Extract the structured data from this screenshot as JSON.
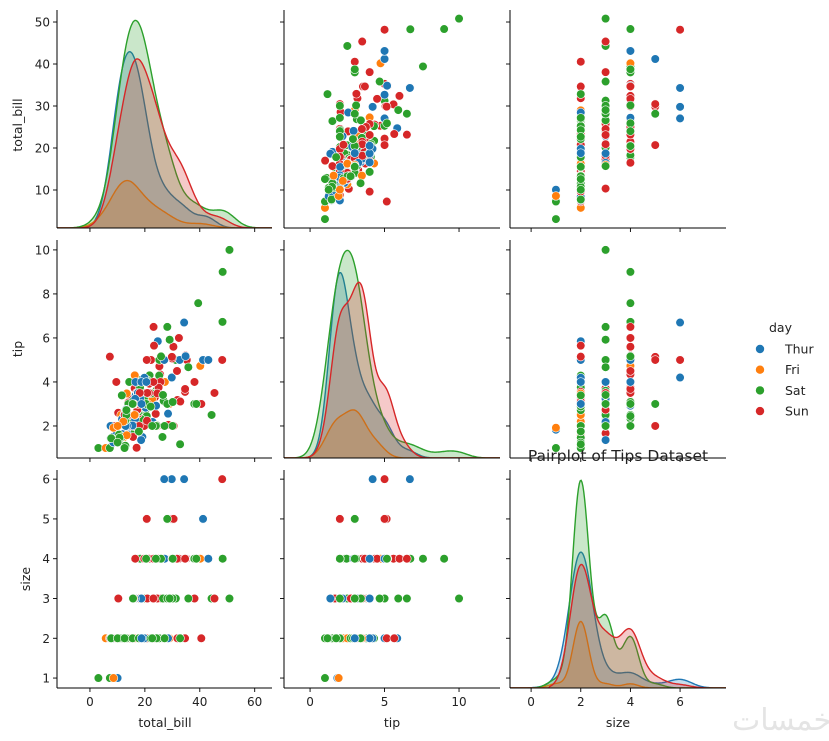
{
  "chart_data": {
    "type": "scatter",
    "title": "Pairplot of Tips Dataset",
    "variables": [
      "total_bill",
      "tip",
      "size"
    ],
    "diagonal_type": "kde",
    "hue": "day",
    "legend": {
      "title": "day",
      "placement": "right",
      "entries": [
        "Thur",
        "Fri",
        "Sat",
        "Sun"
      ]
    },
    "colors": {
      "Thur": "#1f77b4",
      "Fri": "#ff7f0e",
      "Sat": "#2ca02c",
      "Sun": "#d62728"
    },
    "x_ticks": {
      "total_bill": [
        0,
        20,
        40,
        60
      ],
      "tip": [
        0,
        5,
        10
      ],
      "size": [
        0,
        2,
        4,
        6
      ]
    },
    "y_ticks": {
      "total_bill": [
        10,
        20,
        30,
        40,
        50
      ],
      "tip": [
        2,
        4,
        6,
        8,
        10
      ],
      "size": [
        1,
        2,
        3,
        4,
        5,
        6
      ]
    },
    "x_limits": {
      "total_bill": [
        -12,
        66.3
      ],
      "tip": [
        -1.75,
        12.75
      ],
      "size": [
        -0.85,
        7.85
      ]
    },
    "y_limits": {
      "total_bill": [
        0.95,
        52.86
      ],
      "tip": [
        0.545,
        10.45
      ],
      "size": [
        0.75,
        6.23
      ]
    },
    "columns": [
      "total_bill",
      "tip",
      "size",
      "day"
    ],
    "rows": [
      [
        16.99,
        1.01,
        2,
        "Sun"
      ],
      [
        10.34,
        1.66,
        3,
        "Sun"
      ],
      [
        21.01,
        3.5,
        3,
        "Sun"
      ],
      [
        23.68,
        3.31,
        2,
        "Sun"
      ],
      [
        24.59,
        3.61,
        4,
        "Sun"
      ],
      [
        25.29,
        4.71,
        4,
        "Sun"
      ],
      [
        8.77,
        2.0,
        2,
        "Sun"
      ],
      [
        26.88,
        3.12,
        4,
        "Sun"
      ],
      [
        15.04,
        1.96,
        2,
        "Sun"
      ],
      [
        14.78,
        3.23,
        2,
        "Sun"
      ],
      [
        10.27,
        1.71,
        2,
        "Sun"
      ],
      [
        35.26,
        5.0,
        4,
        "Sun"
      ],
      [
        15.42,
        1.57,
        2,
        "Sun"
      ],
      [
        18.43,
        3.0,
        4,
        "Sun"
      ],
      [
        14.83,
        3.02,
        2,
        "Sun"
      ],
      [
        21.58,
        3.92,
        2,
        "Sun"
      ],
      [
        10.33,
        1.67,
        3,
        "Sun"
      ],
      [
        16.29,
        3.71,
        3,
        "Sun"
      ],
      [
        16.97,
        3.5,
        3,
        "Sun"
      ],
      [
        20.65,
        3.35,
        3,
        "Sat"
      ],
      [
        17.92,
        4.08,
        2,
        "Sat"
      ],
      [
        20.29,
        2.75,
        2,
        "Sat"
      ],
      [
        15.77,
        2.23,
        2,
        "Sat"
      ],
      [
        39.42,
        7.58,
        4,
        "Sat"
      ],
      [
        19.82,
        3.18,
        2,
        "Sat"
      ],
      [
        17.81,
        2.34,
        4,
        "Sat"
      ],
      [
        13.37,
        2.0,
        2,
        "Sat"
      ],
      [
        12.69,
        2.0,
        2,
        "Sat"
      ],
      [
        21.7,
        4.3,
        2,
        "Sat"
      ],
      [
        19.65,
        3.0,
        2,
        "Sat"
      ],
      [
        9.55,
        1.45,
        2,
        "Sat"
      ],
      [
        18.35,
        2.5,
        4,
        "Sat"
      ],
      [
        15.06,
        3.0,
        2,
        "Sat"
      ],
      [
        20.69,
        2.45,
        4,
        "Sat"
      ],
      [
        17.78,
        3.27,
        2,
        "Sat"
      ],
      [
        24.06,
        3.6,
        3,
        "Sat"
      ],
      [
        16.31,
        2.0,
        3,
        "Sat"
      ],
      [
        16.93,
        3.07,
        3,
        "Sat"
      ],
      [
        18.69,
        2.31,
        3,
        "Sat"
      ],
      [
        31.27,
        5.0,
        3,
        "Sat"
      ],
      [
        16.04,
        2.24,
        3,
        "Sat"
      ],
      [
        17.46,
        2.54,
        2,
        "Sun"
      ],
      [
        13.94,
        3.06,
        2,
        "Sun"
      ],
      [
        9.68,
        1.32,
        2,
        "Sun"
      ],
      [
        30.4,
        5.6,
        4,
        "Sun"
      ],
      [
        18.29,
        3.0,
        2,
        "Sun"
      ],
      [
        22.23,
        5.0,
        2,
        "Sun"
      ],
      [
        32.4,
        6.0,
        4,
        "Sun"
      ],
      [
        28.55,
        2.05,
        3,
        "Sun"
      ],
      [
        18.04,
        3.0,
        2,
        "Sun"
      ],
      [
        12.54,
        2.5,
        2,
        "Sun"
      ],
      [
        10.29,
        2.6,
        2,
        "Sun"
      ],
      [
        34.81,
        5.2,
        4,
        "Sun"
      ],
      [
        9.94,
        1.56,
        2,
        "Sun"
      ],
      [
        25.56,
        4.34,
        4,
        "Sun"
      ],
      [
        19.49,
        3.51,
        2,
        "Sun"
      ],
      [
        38.01,
        3.0,
        4,
        "Sat"
      ],
      [
        26.41,
        1.5,
        2,
        "Sat"
      ],
      [
        11.24,
        1.76,
        2,
        "Sat"
      ],
      [
        48.27,
        6.73,
        4,
        "Sat"
      ],
      [
        20.29,
        3.21,
        2,
        "Sat"
      ],
      [
        13.81,
        2.0,
        2,
        "Sat"
      ],
      [
        11.02,
        1.98,
        2,
        "Sat"
      ],
      [
        18.29,
        3.76,
        4,
        "Sat"
      ],
      [
        17.59,
        2.64,
        3,
        "Sat"
      ],
      [
        20.08,
        3.15,
        3,
        "Sat"
      ],
      [
        16.45,
        2.47,
        2,
        "Sat"
      ],
      [
        3.07,
        1.0,
        1,
        "Sat"
      ],
      [
        20.23,
        2.01,
        2,
        "Sat"
      ],
      [
        15.01,
        2.09,
        2,
        "Sat"
      ],
      [
        12.02,
        1.97,
        2,
        "Sat"
      ],
      [
        17.07,
        3.0,
        3,
        "Sat"
      ],
      [
        26.86,
        3.14,
        2,
        "Sat"
      ],
      [
        25.28,
        5.0,
        2,
        "Sat"
      ],
      [
        14.73,
        2.2,
        2,
        "Sat"
      ],
      [
        10.51,
        1.25,
        2,
        "Sat"
      ],
      [
        17.92,
        3.08,
        2,
        "Sat"
      ],
      [
        27.2,
        4.0,
        4,
        "Thur"
      ],
      [
        22.76,
        3.0,
        2,
        "Thur"
      ],
      [
        17.29,
        2.71,
        2,
        "Thur"
      ],
      [
        19.44,
        3.0,
        2,
        "Thur"
      ],
      [
        16.66,
        3.4,
        2,
        "Thur"
      ],
      [
        10.07,
        1.83,
        1,
        "Thur"
      ],
      [
        32.68,
        5.0,
        2,
        "Thur"
      ],
      [
        15.98,
        2.03,
        2,
        "Thur"
      ],
      [
        34.83,
        5.17,
        4,
        "Thur"
      ],
      [
        13.03,
        2.0,
        2,
        "Thur"
      ],
      [
        18.28,
        4.0,
        2,
        "Thur"
      ],
      [
        24.71,
        5.85,
        2,
        "Thur"
      ],
      [
        21.16,
        3.0,
        2,
        "Thur"
      ],
      [
        28.97,
        3.0,
        2,
        "Fri"
      ],
      [
        22.49,
        3.5,
        2,
        "Fri"
      ],
      [
        5.75,
        1.0,
        2,
        "Fri"
      ],
      [
        16.32,
        4.3,
        2,
        "Fri"
      ],
      [
        22.75,
        3.25,
        2,
        "Fri"
      ],
      [
        40.17,
        4.73,
        4,
        "Fri"
      ],
      [
        27.28,
        4.0,
        2,
        "Fri"
      ],
      [
        12.03,
        1.5,
        2,
        "Fri"
      ],
      [
        21.01,
        3.0,
        2,
        "Fri"
      ],
      [
        12.46,
        1.5,
        2,
        "Fri"
      ],
      [
        11.35,
        2.5,
        2,
        "Fri"
      ],
      [
        15.38,
        3.0,
        2,
        "Fri"
      ],
      [
        44.3,
        2.5,
        3,
        "Sat"
      ],
      [
        22.42,
        3.48,
        2,
        "Sat"
      ],
      [
        20.92,
        4.08,
        2,
        "Sat"
      ],
      [
        15.36,
        1.64,
        2,
        "Sat"
      ],
      [
        20.49,
        4.06,
        2,
        "Sat"
      ],
      [
        25.21,
        4.29,
        2,
        "Sat"
      ],
      [
        18.24,
        3.76,
        2,
        "Sat"
      ],
      [
        14.31,
        4.0,
        2,
        "Sat"
      ],
      [
        14.0,
        3.0,
        2,
        "Sat"
      ],
      [
        7.25,
        1.0,
        1,
        "Sat"
      ],
      [
        38.07,
        4.0,
        3,
        "Sun"
      ],
      [
        23.95,
        2.55,
        2,
        "Sun"
      ],
      [
        25.71,
        4.0,
        3,
        "Sun"
      ],
      [
        17.31,
        3.5,
        2,
        "Sun"
      ],
      [
        29.93,
        5.07,
        4,
        "Sun"
      ],
      [
        10.65,
        1.5,
        2,
        "Thur"
      ],
      [
        12.43,
        1.8,
        2,
        "Thur"
      ],
      [
        24.08,
        2.92,
        4,
        "Thur"
      ],
      [
        11.69,
        2.31,
        2,
        "Thur"
      ],
      [
        13.42,
        1.68,
        2,
        "Thur"
      ],
      [
        14.26,
        2.5,
        2,
        "Thur"
      ],
      [
        15.95,
        2.0,
        2,
        "Thur"
      ],
      [
        12.48,
        2.52,
        2,
        "Thur"
      ],
      [
        29.8,
        4.2,
        6,
        "Thur"
      ],
      [
        8.52,
        1.48,
        2,
        "Thur"
      ],
      [
        14.52,
        2.0,
        2,
        "Thur"
      ],
      [
        11.38,
        2.0,
        2,
        "Thur"
      ],
      [
        22.82,
        2.18,
        3,
        "Thur"
      ],
      [
        19.08,
        1.5,
        2,
        "Thur"
      ],
      [
        20.27,
        2.83,
        2,
        "Thur"
      ],
      [
        11.17,
        1.5,
        2,
        "Thur"
      ],
      [
        12.26,
        2.0,
        2,
        "Thur"
      ],
      [
        18.26,
        3.25,
        2,
        "Thur"
      ],
      [
        8.51,
        1.25,
        2,
        "Thur"
      ],
      [
        10.33,
        2.0,
        2,
        "Thur"
      ],
      [
        14.15,
        2.0,
        2,
        "Thur"
      ],
      [
        16.0,
        2.0,
        2,
        "Thur"
      ],
      [
        13.16,
        2.75,
        2,
        "Thur"
      ],
      [
        17.47,
        3.5,
        2,
        "Thur"
      ],
      [
        34.3,
        6.7,
        6,
        "Thur"
      ],
      [
        41.19,
        5.0,
        5,
        "Thur"
      ],
      [
        27.05,
        5.0,
        6,
        "Thur"
      ],
      [
        16.43,
        2.3,
        2,
        "Thur"
      ],
      [
        8.35,
        1.5,
        2,
        "Thur"
      ],
      [
        18.64,
        1.36,
        3,
        "Thur"
      ],
      [
        11.87,
        1.63,
        2,
        "Thur"
      ],
      [
        9.78,
        1.73,
        2,
        "Thur"
      ],
      [
        7.51,
        2.0,
        2,
        "Thur"
      ],
      [
        14.07,
        2.5,
        2,
        "Sun"
      ],
      [
        13.13,
        2.0,
        2,
        "Sun"
      ],
      [
        17.26,
        2.74,
        3,
        "Sun"
      ],
      [
        24.55,
        2.0,
        4,
        "Sun"
      ],
      [
        19.77,
        2.0,
        4,
        "Sun"
      ],
      [
        29.85,
        5.14,
        5,
        "Sun"
      ],
      [
        48.17,
        5.0,
        6,
        "Sun"
      ],
      [
        25.0,
        3.75,
        4,
        "Sun"
      ],
      [
        13.39,
        2.61,
        2,
        "Sun"
      ],
      [
        16.49,
        2.0,
        4,
        "Sun"
      ],
      [
        21.5,
        3.5,
        4,
        "Sun"
      ],
      [
        12.66,
        2.5,
        2,
        "Sun"
      ],
      [
        16.21,
        2.0,
        3,
        "Sun"
      ],
      [
        13.81,
        2.0,
        2,
        "Sun"
      ],
      [
        17.51,
        3.0,
        2,
        "Sun"
      ],
      [
        24.52,
        3.48,
        3,
        "Sun"
      ],
      [
        20.76,
        2.24,
        2,
        "Sun"
      ],
      [
        31.71,
        4.5,
        4,
        "Sun"
      ],
      [
        10.59,
        1.61,
        2,
        "Sat"
      ],
      [
        10.63,
        2.0,
        2,
        "Sat"
      ],
      [
        50.81,
        10.0,
        3,
        "Sat"
      ],
      [
        15.81,
        3.16,
        2,
        "Sat"
      ],
      [
        7.25,
        5.15,
        2,
        "Sun"
      ],
      [
        31.85,
        3.18,
        2,
        "Sun"
      ],
      [
        16.82,
        4.0,
        2,
        "Sun"
      ],
      [
        32.9,
        3.11,
        2,
        "Sun"
      ],
      [
        17.89,
        2.0,
        2,
        "Sun"
      ],
      [
        14.48,
        2.0,
        2,
        "Sun"
      ],
      [
        9.6,
        4.0,
        2,
        "Sun"
      ],
      [
        34.63,
        3.55,
        2,
        "Sun"
      ],
      [
        34.65,
        3.68,
        4,
        "Sun"
      ],
      [
        23.33,
        5.65,
        2,
        "Sun"
      ],
      [
        45.35,
        3.5,
        3,
        "Sun"
      ],
      [
        23.17,
        6.5,
        4,
        "Sun"
      ],
      [
        40.55,
        3.0,
        2,
        "Sun"
      ],
      [
        20.69,
        5.0,
        5,
        "Sun"
      ],
      [
        20.9,
        3.5,
        3,
        "Sun"
      ],
      [
        30.46,
        2.0,
        5,
        "Sun"
      ],
      [
        18.15,
        3.5,
        3,
        "Sun"
      ],
      [
        23.1,
        4.0,
        3,
        "Sun"
      ],
      [
        15.69,
        1.5,
        2,
        "Sun"
      ],
      [
        19.81,
        4.19,
        2,
        "Thur"
      ],
      [
        28.44,
        2.56,
        2,
        "Thur"
      ],
      [
        15.48,
        2.02,
        2,
        "Thur"
      ],
      [
        16.58,
        4.0,
        2,
        "Thur"
      ],
      [
        7.56,
        1.44,
        2,
        "Thur"
      ],
      [
        10.34,
        2.0,
        2,
        "Thur"
      ],
      [
        43.11,
        5.0,
        4,
        "Thur"
      ],
      [
        13.0,
        2.0,
        2,
        "Thur"
      ],
      [
        13.51,
        2.0,
        2,
        "Thur"
      ],
      [
        18.71,
        4.0,
        3,
        "Thur"
      ],
      [
        12.74,
        2.01,
        2,
        "Thur"
      ],
      [
        13.0,
        2.0,
        2,
        "Thur"
      ],
      [
        16.4,
        2.5,
        2,
        "Thur"
      ],
      [
        20.53,
        4.0,
        4,
        "Thur"
      ],
      [
        16.47,
        3.23,
        3,
        "Thur"
      ],
      [
        26.59,
        3.41,
        3,
        "Sat"
      ],
      [
        38.73,
        3.0,
        4,
        "Sat"
      ],
      [
        24.27,
        2.03,
        2,
        "Sat"
      ],
      [
        12.76,
        2.23,
        2,
        "Sat"
      ],
      [
        30.06,
        2.0,
        3,
        "Sat"
      ],
      [
        25.89,
        5.16,
        4,
        "Sat"
      ],
      [
        48.33,
        9.0,
        4,
        "Sat"
      ],
      [
        13.27,
        2.5,
        2,
        "Sat"
      ],
      [
        28.17,
        6.5,
        3,
        "Sat"
      ],
      [
        12.9,
        1.1,
        2,
        "Sat"
      ],
      [
        28.15,
        3.0,
        5,
        "Sat"
      ],
      [
        11.59,
        1.5,
        2,
        "Sat"
      ],
      [
        7.74,
        1.44,
        2,
        "Sat"
      ],
      [
        30.14,
        3.09,
        4,
        "Sat"
      ],
      [
        12.16,
        2.2,
        2,
        "Fri"
      ],
      [
        13.42,
        3.48,
        2,
        "Fri"
      ],
      [
        8.58,
        1.92,
        1,
        "Fri"
      ],
      [
        15.98,
        3.0,
        3,
        "Fri"
      ],
      [
        13.42,
        1.58,
        2,
        "Fri"
      ],
      [
        16.27,
        2.5,
        2,
        "Fri"
      ],
      [
        10.09,
        2.0,
        2,
        "Fri"
      ],
      [
        20.45,
        3.0,
        4,
        "Sat"
      ],
      [
        13.28,
        2.72,
        2,
        "Sat"
      ],
      [
        22.12,
        2.88,
        2,
        "Sat"
      ],
      [
        24.01,
        2.0,
        4,
        "Sat"
      ],
      [
        15.69,
        3.0,
        3,
        "Sat"
      ],
      [
        11.61,
        3.39,
        2,
        "Sat"
      ],
      [
        10.77,
        1.47,
        2,
        "Sat"
      ],
      [
        15.53,
        3.0,
        2,
        "Sat"
      ],
      [
        10.07,
        1.25,
        2,
        "Sat"
      ],
      [
        12.6,
        1.0,
        2,
        "Sat"
      ],
      [
        32.83,
        1.17,
        2,
        "Sat"
      ],
      [
        35.83,
        4.67,
        3,
        "Sat"
      ],
      [
        29.03,
        5.92,
        3,
        "Sat"
      ],
      [
        27.18,
        2.0,
        2,
        "Sat"
      ],
      [
        22.67,
        2.0,
        2,
        "Sat"
      ],
      [
        17.82,
        1.75,
        2,
        "Sat"
      ],
      [
        18.78,
        3.0,
        2,
        "Thur"
      ]
    ]
  },
  "watermark": "خمسات"
}
